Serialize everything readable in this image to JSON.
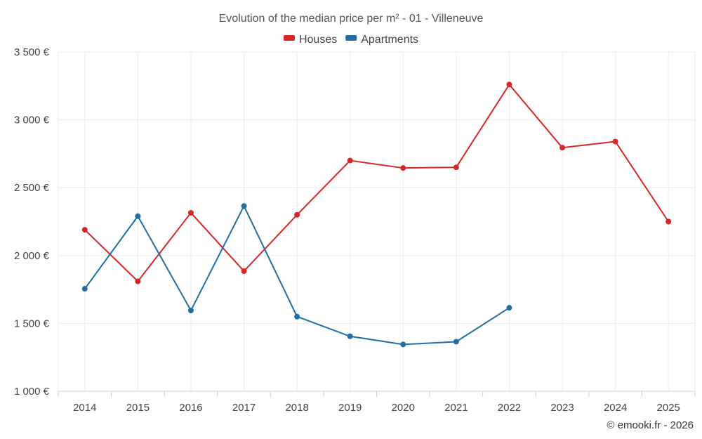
{
  "chart_data": {
    "type": "line",
    "title": "Evolution of the median price per m² - 01 - Villeneuve",
    "categories": [
      "2014",
      "2015",
      "2016",
      "2017",
      "2018",
      "2019",
      "2020",
      "2021",
      "2022",
      "2023",
      "2024",
      "2025"
    ],
    "y_ticks": [
      1000,
      1500,
      2000,
      2500,
      3000,
      3500
    ],
    "y_tick_labels": [
      "1 000 €",
      "1 500 €",
      "2 000 €",
      "2 500 €",
      "3 000 €",
      "3 500 €"
    ],
    "ylim": [
      1000,
      3500
    ],
    "xlabel": "",
    "ylabel": "",
    "grid": true,
    "legend_position": "top-center",
    "series": [
      {
        "name": "Houses",
        "color": "#d62728",
        "values": [
          2190,
          1810,
          2315,
          1885,
          2300,
          2700,
          2645,
          2650,
          3260,
          2795,
          2840,
          2250
        ]
      },
      {
        "name": "Apartments",
        "color": "#1f6fa5",
        "values": [
          1755,
          2290,
          1595,
          2365,
          1550,
          1405,
          1345,
          1365,
          1615,
          null,
          null,
          null
        ]
      }
    ]
  },
  "credit": "© emooki.fr - 2026"
}
